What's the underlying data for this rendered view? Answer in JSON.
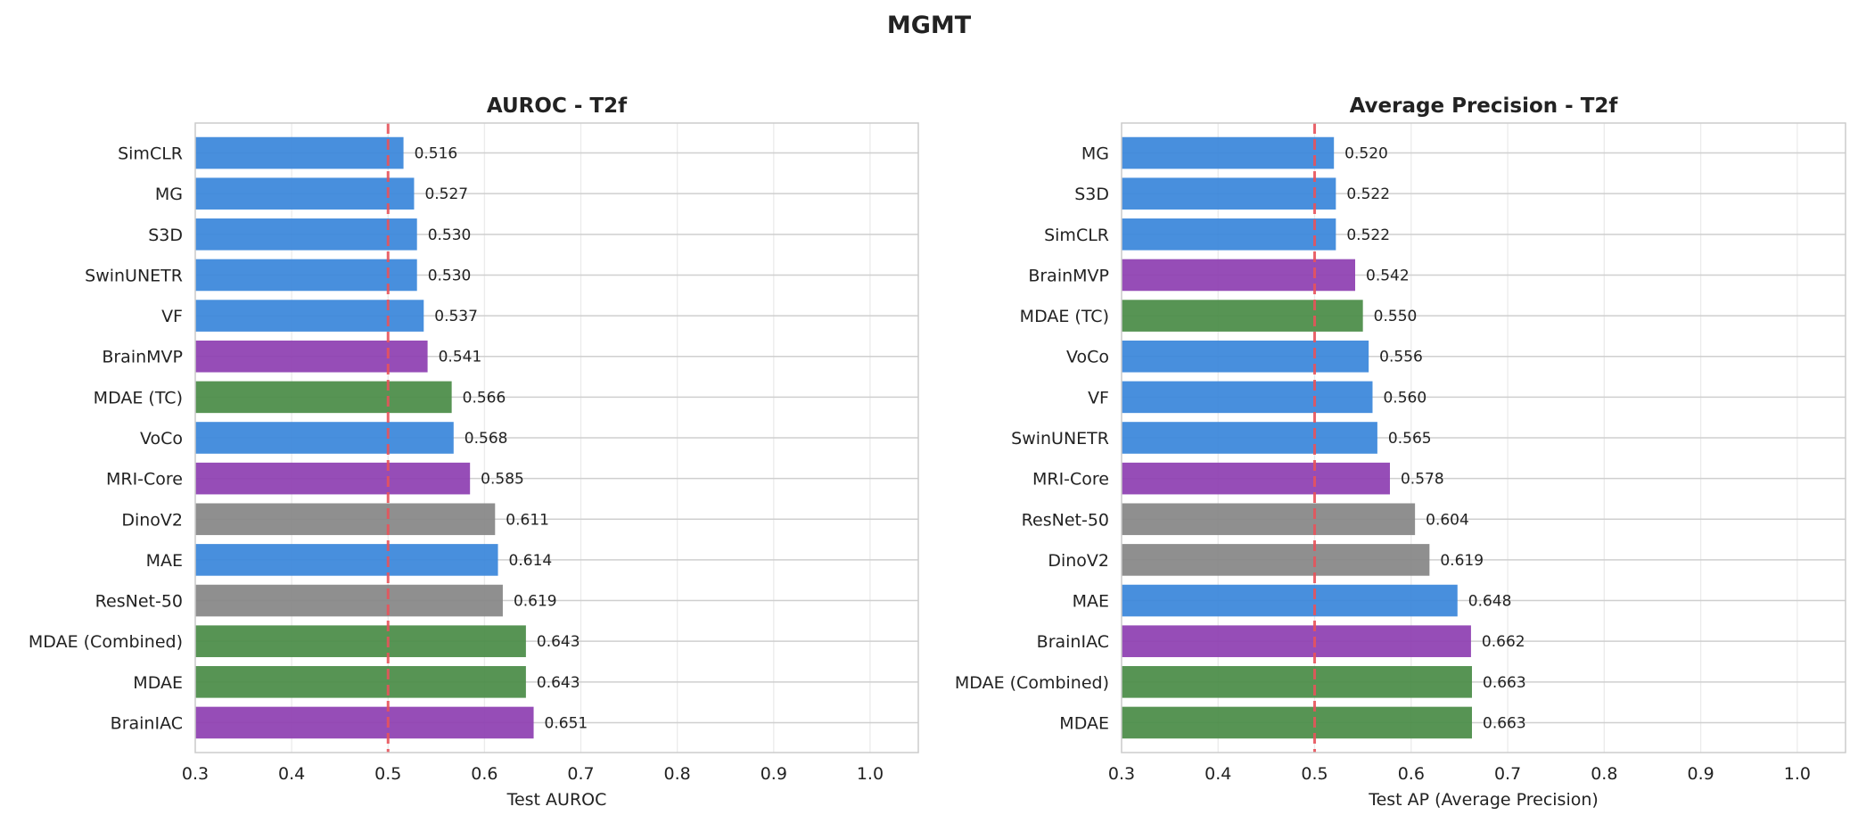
{
  "suptitle": "MGMT",
  "colors": {
    "ssl": "#3a87da",
    "foundation": "#8e3fb2",
    "mdae": "#4a8c47",
    "supervised": "#878787",
    "chance_line": "#e8535b"
  },
  "chart_data": [
    {
      "type": "bar",
      "orientation": "horizontal",
      "title": "AUROC - T2f",
      "xlabel": "Test AUROC",
      "xlim": [
        0.3,
        1.05
      ],
      "xticks": [
        "0.3",
        "0.4",
        "0.5",
        "0.6",
        "0.7",
        "0.8",
        "0.9",
        "1.0"
      ],
      "reference_line": 0.5,
      "grid": true,
      "categories": [
        "SimCLR",
        "MG",
        "S3D",
        "SwinUNETR",
        "VF",
        "BrainMVP",
        "MDAE (TC)",
        "VoCo",
        "MRI-Core",
        "DinoV2",
        "MAE",
        "ResNet-50",
        "MDAE (Combined)",
        "MDAE",
        "BrainIAC"
      ],
      "values": [
        0.516,
        0.527,
        0.53,
        0.53,
        0.537,
        0.541,
        0.566,
        0.568,
        0.585,
        0.611,
        0.614,
        0.619,
        0.643,
        0.643,
        0.651
      ],
      "labels": [
        "0.516",
        "0.527",
        "0.530",
        "0.530",
        "0.537",
        "0.541",
        "0.566",
        "0.568",
        "0.585",
        "0.611",
        "0.614",
        "0.619",
        "0.643",
        "0.643",
        "0.651"
      ],
      "groups": [
        "ssl",
        "ssl",
        "ssl",
        "ssl",
        "ssl",
        "foundation",
        "mdae",
        "ssl",
        "foundation",
        "supervised",
        "ssl",
        "supervised",
        "mdae",
        "mdae",
        "foundation"
      ]
    },
    {
      "type": "bar",
      "orientation": "horizontal",
      "title": "Average Precision - T2f",
      "xlabel": "Test AP (Average Precision)",
      "xlim": [
        0.3,
        1.05
      ],
      "xticks": [
        "0.3",
        "0.4",
        "0.5",
        "0.6",
        "0.7",
        "0.8",
        "0.9",
        "1.0"
      ],
      "reference_line": 0.5,
      "grid": true,
      "categories": [
        "MG",
        "S3D",
        "SimCLR",
        "BrainMVP",
        "MDAE (TC)",
        "VoCo",
        "VF",
        "SwinUNETR",
        "MRI-Core",
        "ResNet-50",
        "DinoV2",
        "MAE",
        "BrainIAC",
        "MDAE (Combined)",
        "MDAE"
      ],
      "values": [
        0.52,
        0.522,
        0.522,
        0.542,
        0.55,
        0.556,
        0.56,
        0.565,
        0.578,
        0.604,
        0.619,
        0.648,
        0.662,
        0.663,
        0.663
      ],
      "labels": [
        "0.520",
        "0.522",
        "0.522",
        "0.542",
        "0.550",
        "0.556",
        "0.560",
        "0.565",
        "0.578",
        "0.604",
        "0.619",
        "0.648",
        "0.662",
        "0.663",
        "0.663"
      ],
      "groups": [
        "ssl",
        "ssl",
        "ssl",
        "foundation",
        "mdae",
        "ssl",
        "ssl",
        "ssl",
        "foundation",
        "supervised",
        "supervised",
        "ssl",
        "foundation",
        "mdae",
        "mdae"
      ]
    }
  ]
}
